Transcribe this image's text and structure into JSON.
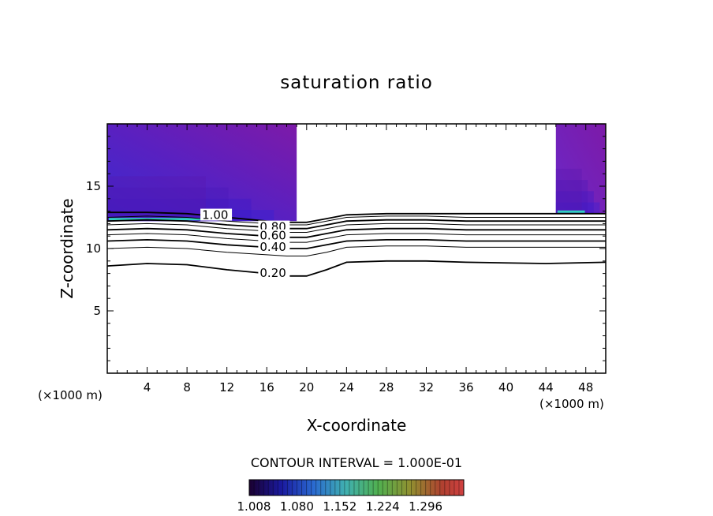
{
  "chart_data": {
    "type": "contour",
    "title": "saturation ratio",
    "xlabel": "X-coordinate",
    "ylabel": "Z-coordinate",
    "x_unit_left": "(×1000 m)",
    "x_unit_right": "(×1000 m)",
    "xlim": [
      0,
      50
    ],
    "ylim": [
      0,
      20
    ],
    "x_ticks": [
      4,
      8,
      12,
      16,
      20,
      24,
      28,
      32,
      36,
      40,
      44,
      48
    ],
    "y_ticks": [
      5,
      10,
      15
    ],
    "contour_interval_label": "CONTOUR INTERVAL = 1.000E-01",
    "colorbar": {
      "ticks": [
        "1.008",
        "1.080",
        "1.152",
        "1.224",
        "1.296"
      ],
      "range": [
        1.008,
        1.368
      ]
    },
    "contour_lines": [
      {
        "level": "0.20",
        "z": [
          8.6,
          8.8,
          8.7,
          8.3,
          8.0,
          7.8,
          7.8,
          8.3,
          8.9,
          9.0,
          9.0,
          8.9,
          8.8,
          8.9
        ]
      },
      {
        "level": "0.30",
        "z": [
          10.0,
          10.1,
          10.0,
          9.7,
          9.5,
          9.4,
          9.4,
          9.7,
          10.1,
          10.2,
          10.2,
          10.1,
          10.1,
          10.1
        ]
      },
      {
        "level": "0.40",
        "z": [
          10.6,
          10.7,
          10.6,
          10.3,
          10.1,
          10.0,
          10.0,
          10.3,
          10.6,
          10.7,
          10.7,
          10.6,
          10.6,
          10.6
        ]
      },
      {
        "level": "0.50",
        "z": [
          11.1,
          11.2,
          11.1,
          10.8,
          10.6,
          10.5,
          10.5,
          10.8,
          11.1,
          11.2,
          11.2,
          11.1,
          11.1,
          11.1
        ]
      },
      {
        "level": "0.60",
        "z": [
          11.5,
          11.6,
          11.5,
          11.2,
          11.0,
          10.9,
          10.9,
          11.2,
          11.5,
          11.6,
          11.6,
          11.5,
          11.5,
          11.5
        ]
      },
      {
        "level": "0.70",
        "z": [
          11.9,
          12.0,
          11.9,
          11.6,
          11.4,
          11.3,
          11.3,
          11.6,
          11.9,
          12.0,
          12.0,
          11.9,
          11.9,
          11.9
        ]
      },
      {
        "level": "0.80",
        "z": [
          12.2,
          12.3,
          12.2,
          11.9,
          11.7,
          11.6,
          11.6,
          11.9,
          12.2,
          12.3,
          12.3,
          12.2,
          12.2,
          12.2
        ]
      },
      {
        "level": "0.90",
        "z": [
          12.5,
          12.6,
          12.5,
          12.2,
          12.0,
          11.9,
          11.9,
          12.2,
          12.5,
          12.6,
          12.6,
          12.5,
          12.5,
          12.5
        ]
      },
      {
        "level": "1.00",
        "z": [
          12.9,
          12.9,
          12.8,
          12.5,
          12.2,
          12.1,
          12.1,
          12.4,
          12.7,
          12.8,
          12.8,
          12.8,
          12.8,
          12.8
        ]
      }
    ],
    "contour_x": [
      0,
      4,
      8,
      12,
      16,
      18,
      20,
      22,
      24,
      28,
      32,
      36,
      44,
      50
    ],
    "contour_labels": [
      "1.00",
      "0.80",
      "0.60",
      "0.40",
      "0.20"
    ],
    "colored_regions": [
      {
        "x_range": [
          0,
          19
        ],
        "z_bottom": 12.2,
        "z_top": 20
      },
      {
        "x_range": [
          45,
          50
        ],
        "z_bottom": 12.8,
        "z_top": 20
      }
    ]
  }
}
